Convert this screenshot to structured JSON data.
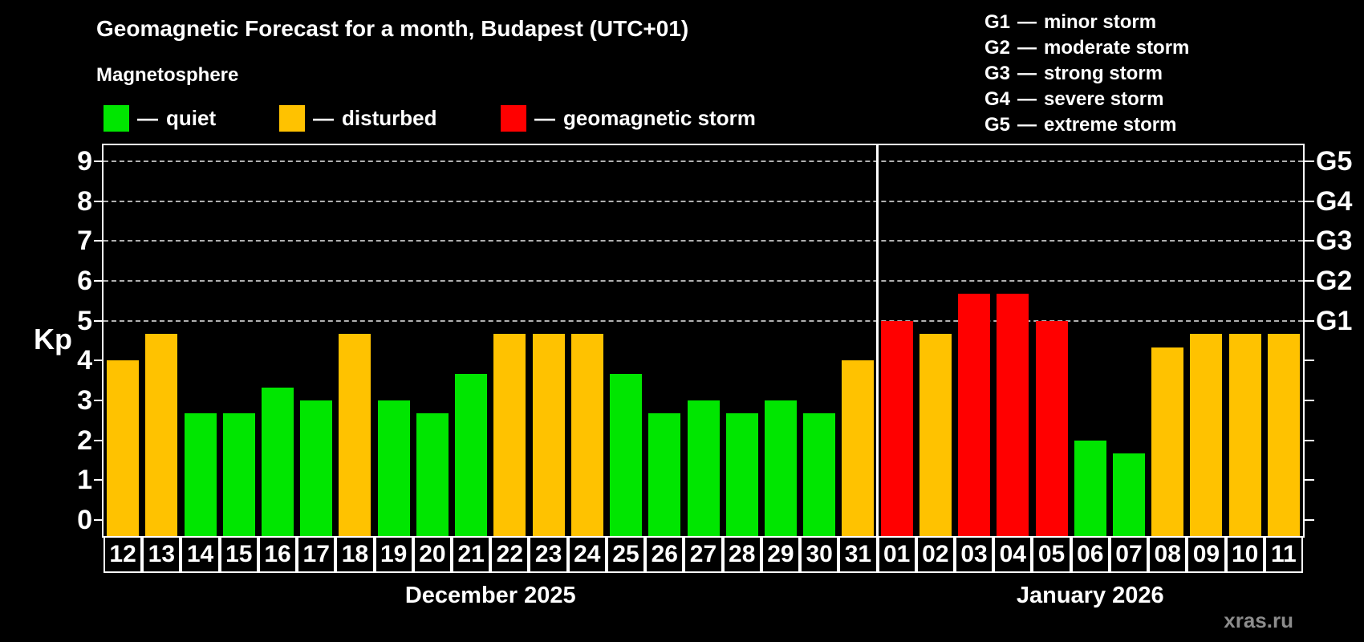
{
  "header": {
    "title": "Geomagnetic Forecast for a month, Budapest (UTC+01)",
    "subtitle": "Magnetosphere"
  },
  "legend": {
    "dash": "—",
    "items": [
      {
        "label": "quiet",
        "status": "quiet",
        "color": "#00e600"
      },
      {
        "label": "disturbed",
        "status": "disturbed",
        "color": "#ffc200"
      },
      {
        "label": "geomagnetic storm",
        "status": "storm",
        "color": "#ff0000"
      }
    ]
  },
  "storm_scale": {
    "dash": "—",
    "items": [
      {
        "level": "G1",
        "desc": "minor storm"
      },
      {
        "level": "G2",
        "desc": "moderate storm"
      },
      {
        "level": "G3",
        "desc": "strong storm"
      },
      {
        "level": "G4",
        "desc": "severe storm"
      },
      {
        "level": "G5",
        "desc": "extreme storm"
      }
    ]
  },
  "chart_data": {
    "type": "bar",
    "title": "Geomagnetic Forecast for a month, Budapest (UTC+01)",
    "ylabel": "Kp",
    "ylim": [
      -0.4,
      9.4
    ],
    "yticks": [
      0,
      1,
      2,
      3,
      4,
      5,
      6,
      7,
      8,
      9
    ],
    "grid_levels": [
      5,
      6,
      7,
      8,
      9
    ],
    "grid_on": true,
    "right_axis": [
      {
        "label": "G1",
        "kp": 5
      },
      {
        "label": "G2",
        "kp": 6
      },
      {
        "label": "G3",
        "kp": 7
      },
      {
        "label": "G4",
        "kp": 8
      },
      {
        "label": "G5",
        "kp": 9
      }
    ],
    "colors": {
      "quiet": "#00e600",
      "disturbed": "#ffc200",
      "storm": "#ff0000"
    },
    "months": [
      {
        "label": "December 2025",
        "days": 20
      },
      {
        "label": "January 2026",
        "days": 11
      }
    ],
    "bars": [
      {
        "day": "12",
        "kp": 4.0,
        "status": "disturbed"
      },
      {
        "day": "13",
        "kp": 4.67,
        "status": "disturbed"
      },
      {
        "day": "14",
        "kp": 2.67,
        "status": "quiet"
      },
      {
        "day": "15",
        "kp": 2.67,
        "status": "quiet"
      },
      {
        "day": "16",
        "kp": 3.33,
        "status": "quiet"
      },
      {
        "day": "17",
        "kp": 3.0,
        "status": "quiet"
      },
      {
        "day": "18",
        "kp": 4.67,
        "status": "disturbed"
      },
      {
        "day": "19",
        "kp": 3.0,
        "status": "quiet"
      },
      {
        "day": "20",
        "kp": 2.67,
        "status": "quiet"
      },
      {
        "day": "21",
        "kp": 3.67,
        "status": "quiet"
      },
      {
        "day": "22",
        "kp": 4.67,
        "status": "disturbed"
      },
      {
        "day": "23",
        "kp": 4.67,
        "status": "disturbed"
      },
      {
        "day": "24",
        "kp": 4.67,
        "status": "disturbed"
      },
      {
        "day": "25",
        "kp": 3.67,
        "status": "quiet"
      },
      {
        "day": "26",
        "kp": 2.67,
        "status": "quiet"
      },
      {
        "day": "27",
        "kp": 3.0,
        "status": "quiet"
      },
      {
        "day": "28",
        "kp": 2.67,
        "status": "quiet"
      },
      {
        "day": "29",
        "kp": 3.0,
        "status": "quiet"
      },
      {
        "day": "30",
        "kp": 2.67,
        "status": "quiet"
      },
      {
        "day": "31",
        "kp": 4.0,
        "status": "disturbed"
      },
      {
        "day": "01",
        "kp": 5.0,
        "status": "storm"
      },
      {
        "day": "02",
        "kp": 4.67,
        "status": "disturbed"
      },
      {
        "day": "03",
        "kp": 5.67,
        "status": "storm"
      },
      {
        "day": "04",
        "kp": 5.67,
        "status": "storm"
      },
      {
        "day": "05",
        "kp": 5.0,
        "status": "storm"
      },
      {
        "day": "06",
        "kp": 2.0,
        "status": "quiet"
      },
      {
        "day": "07",
        "kp": 1.67,
        "status": "quiet"
      },
      {
        "day": "08",
        "kp": 4.33,
        "status": "disturbed"
      },
      {
        "day": "09",
        "kp": 4.67,
        "status": "disturbed"
      },
      {
        "day": "10",
        "kp": 4.67,
        "status": "disturbed"
      },
      {
        "day": "11",
        "kp": 4.67,
        "status": "disturbed"
      }
    ]
  },
  "watermark": "xras.ru"
}
